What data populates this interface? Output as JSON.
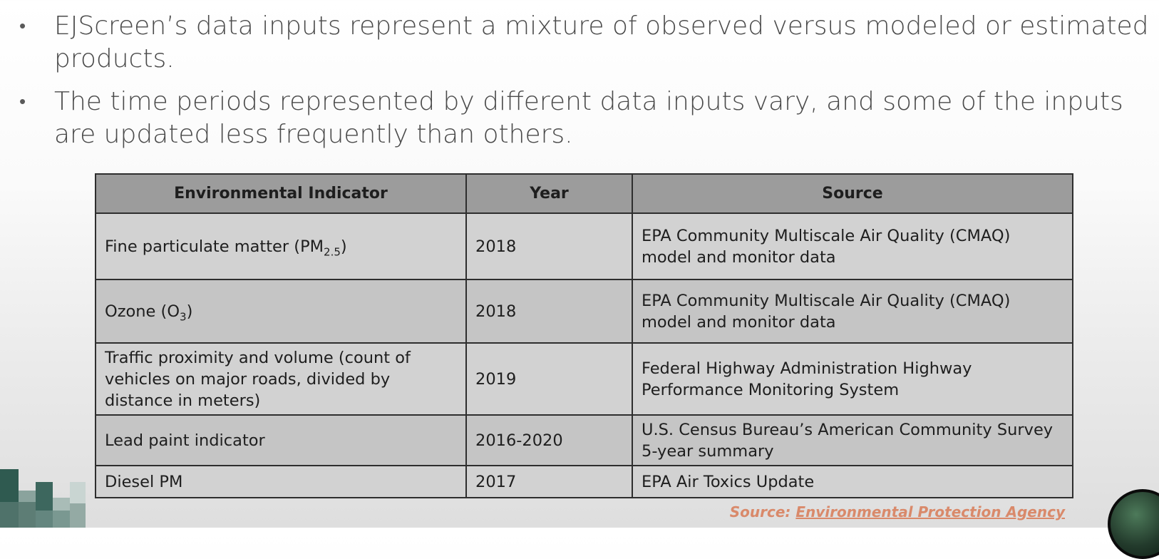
{
  "bullets": [
    "EJScreen’s data inputs represent a mixture of observed versus modeled or estimated products.",
    "The time periods represented by different data inputs vary, and some of the inputs are updated less frequently than others."
  ],
  "bullet_glyph": "•",
  "table": {
    "headers": [
      "Environmental Indicator",
      "Year",
      "Source"
    ],
    "rows": [
      {
        "indicator": "Fine particulate matter (PM",
        "indicator_sub": "2.5",
        "indicator_suffix": ")",
        "year": "2018",
        "source": "EPA Community Multiscale Air Quality (CMAQ) model and monitor data"
      },
      {
        "indicator": "Ozone (O",
        "indicator_sub": "3",
        "indicator_suffix": ")",
        "year": "2018",
        "source": "EPA Community Multiscale Air Quality (CMAQ) model and monitor data"
      },
      {
        "indicator": "Traffic proximity and volume (count of vehicles on major roads, divided by distance in meters)",
        "year": "2019",
        "source": "Federal Highway Administration Highway Performance Monitoring System"
      },
      {
        "indicator": "Lead paint indicator",
        "year": "2016-2020",
        "source": "U.S. Census Bureau’s American Community Survey 5-year summary"
      },
      {
        "indicator": "Diesel PM",
        "year": "2017",
        "source": "EPA Air Toxics Update"
      }
    ]
  },
  "source_note": {
    "prefix": "Source: ",
    "link_text": "Environmental Protection Agency"
  },
  "colors": {
    "header_bg": "#9c9c9c",
    "row_bg": "#d2d2d2",
    "source_accent": "#d9896a"
  }
}
